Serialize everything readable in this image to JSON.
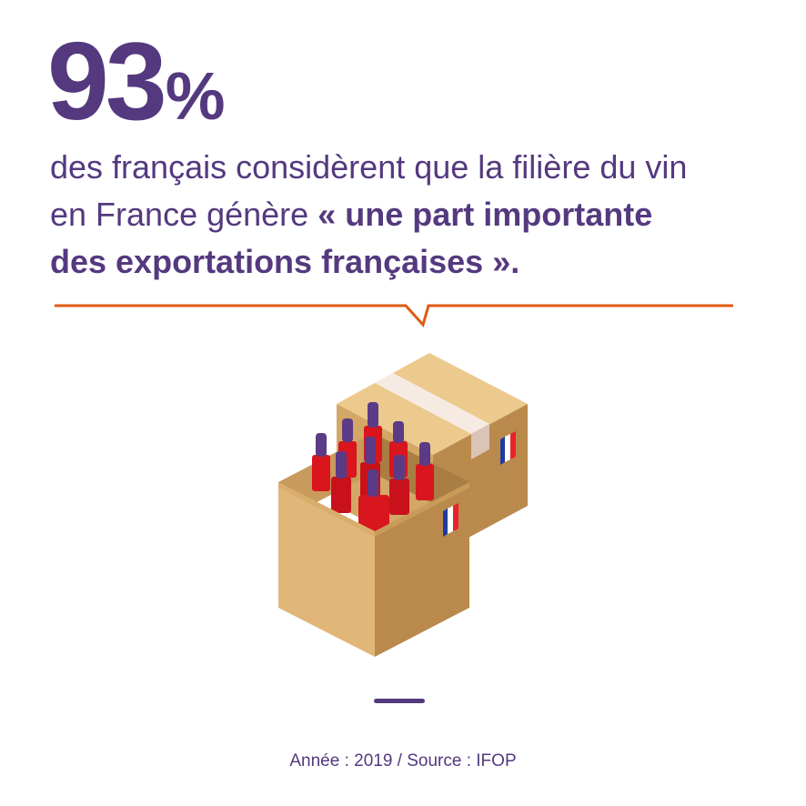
{
  "stat": {
    "number": "93",
    "percent_sign": "%"
  },
  "description": {
    "line1": "des français considèrent que la filière du vin",
    "line2_plain": "en France génère ",
    "line2_bold": "« une part importante",
    "line3_bold": "des exportations françaises »."
  },
  "source": "Année : 2019 / Source : IFOP",
  "colors": {
    "purple": "#54397f",
    "orange": "#e05a13",
    "cardboard_light": "#e0b679",
    "cardboard_dark": "#b98a4c",
    "wine_red": "#d9151e",
    "bottle_neck": "#5b3a86"
  },
  "icons": [
    "wine-box-icon",
    "cardboard-box-icon",
    "french-flag-icon"
  ]
}
